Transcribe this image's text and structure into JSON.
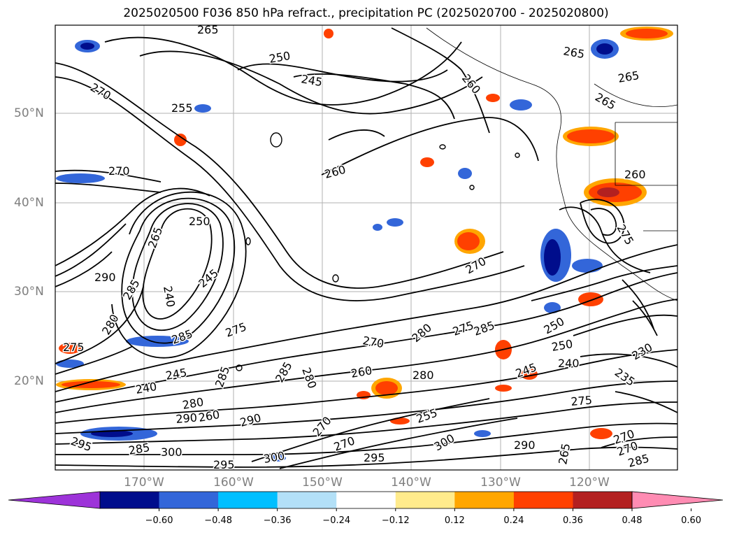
{
  "title": "2025020500 F036 850 hPa refract., precipitation PC (2025020700 - 2025020800)",
  "axes": {
    "lat_labels": [
      "50°N",
      "40°N",
      "30°N",
      "20°N"
    ],
    "lon_labels": [
      "170°W",
      "160°W",
      "150°W",
      "140°W",
      "130°W",
      "120°W"
    ]
  },
  "contour_labels": [
    "265",
    "250",
    "245",
    "260",
    "265",
    "265",
    "270",
    "255",
    "265",
    "270",
    "260",
    "260",
    "250",
    "265",
    "240",
    "245",
    "290",
    "285",
    "280",
    "275",
    "285",
    "275",
    "285",
    "270",
    "270",
    "280",
    "275",
    "250",
    "250",
    "240",
    "235",
    "230",
    "280",
    "285",
    "260",
    "280",
    "245",
    "240",
    "245",
    "280",
    "285",
    "260",
    "290",
    "270",
    "275",
    "270",
    "290",
    "255",
    "300",
    "290",
    "295",
    "265",
    "270",
    "270",
    "285",
    "285",
    "295",
    "300",
    "300",
    "295",
    "275"
  ],
  "colorbar": {
    "ticks": [
      "−0.60",
      "−0.48",
      "−0.36",
      "−0.24",
      "−0.12",
      "0.12",
      "0.24",
      "0.36",
      "0.48",
      "0.60"
    ],
    "colors": [
      "#9d33d9",
      "#000d8c",
      "#3366d9",
      "#00bfff",
      "#b3e0f7",
      "#ffffff",
      "#ffeb8c",
      "#ffa600",
      "#ff4000",
      "#b32020",
      "#ff8cb3"
    ]
  }
}
